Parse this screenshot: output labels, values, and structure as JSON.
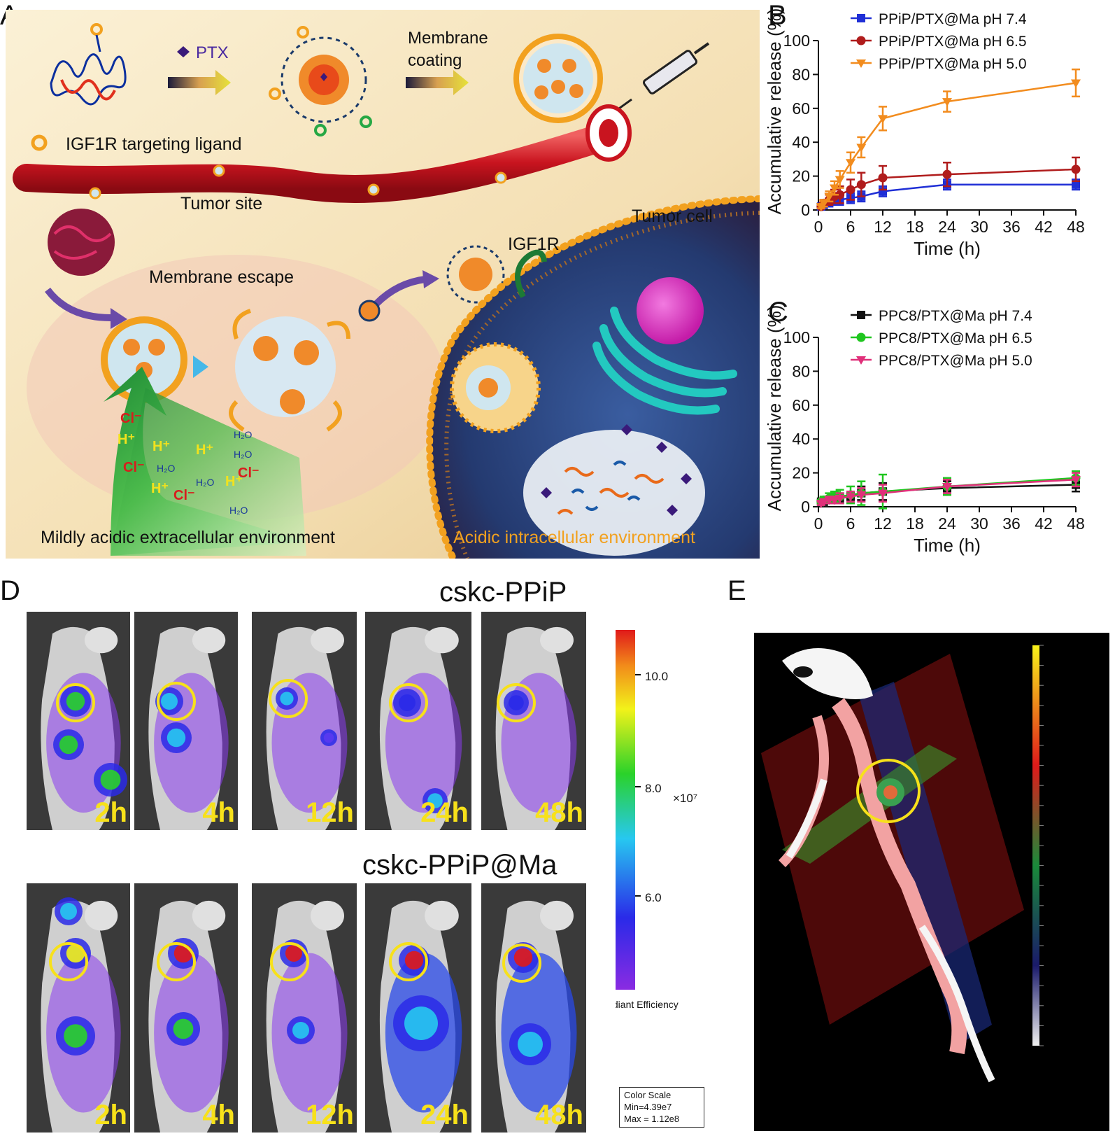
{
  "panels": {
    "a": "A",
    "b": "B",
    "c": "C",
    "d": "D",
    "e": "E"
  },
  "scheme": {
    "ptx_label": "PTX",
    "membrane_coating": "Membrane\ncoating",
    "membrane_coating_l1": "Membrane",
    "membrane_coating_l2": "coating",
    "igf1r_ligand": "IGF1R targeting ligand",
    "tumor_site": "Tumor site",
    "tumor_cell": "Tumor cell",
    "igf1r": "IGF1R",
    "membrane_escape": "Membrane escape",
    "extracellular": "Mildly acidic extracellular environment",
    "intracellular": "Acidic intracellular environment",
    "ions": [
      "Cl⁻",
      "H⁺",
      "H⁺",
      "H⁺",
      "H₂O",
      "Cl⁻",
      "H₂O",
      "H⁺",
      "H₂O",
      "Cl⁻",
      "H⁺",
      "Cl⁻",
      "H₂O",
      "H₂O"
    ],
    "colors": {
      "orange": "#f2a11f",
      "blood": "#c9141f",
      "cell": "#2a3a6a",
      "green": "#26a844"
    }
  },
  "chart_data": [
    {
      "type": "line",
      "panel": "B",
      "xlabel": "Time (h)",
      "ylabel": "Accumulative release (%)",
      "xlim": [
        0,
        48
      ],
      "ylim": [
        0,
        100
      ],
      "xticks": [
        0,
        6,
        12,
        18,
        24,
        30,
        36,
        42,
        48
      ],
      "yticks": [
        0,
        20,
        40,
        60,
        80,
        100
      ],
      "legend_position": "top-right",
      "series": [
        {
          "name": "PPiP/PTX@Ma pH 7.4",
          "color": "#1f2fd6",
          "marker": "square",
          "x": [
            0.5,
            1,
            2,
            3,
            4,
            6,
            8,
            12,
            24,
            48
          ],
          "y": [
            2,
            3,
            4,
            5,
            6,
            7,
            8,
            11,
            15,
            15
          ],
          "err": [
            1,
            1,
            2,
            2,
            3,
            3,
            3,
            3,
            3,
            3
          ]
        },
        {
          "name": "PPiP/PTX@Ma pH 6.5",
          "color": "#b01c1c",
          "marker": "circle",
          "x": [
            0.5,
            1,
            2,
            3,
            4,
            6,
            8,
            12,
            24,
            48
          ],
          "y": [
            2,
            4,
            6,
            8,
            9,
            12,
            15,
            19,
            21,
            24
          ],
          "err": [
            1,
            2,
            3,
            4,
            5,
            6,
            7,
            7,
            7,
            7
          ]
        },
        {
          "name": "PPiP/PTX@Ma pH 5.0",
          "color": "#f28c1e",
          "marker": "triangle-down",
          "x": [
            0.5,
            1,
            2,
            3,
            4,
            6,
            8,
            12,
            24,
            48
          ],
          "y": [
            2,
            4,
            8,
            13,
            18,
            28,
            37,
            54,
            64,
            75
          ],
          "err": [
            1,
            2,
            3,
            4,
            5,
            6,
            6,
            7,
            6,
            8
          ]
        }
      ]
    },
    {
      "type": "line",
      "panel": "C",
      "xlabel": "Time (h)",
      "ylabel": "Accumulative release (%)",
      "xlim": [
        0,
        48
      ],
      "ylim": [
        0,
        100
      ],
      "xticks": [
        0,
        6,
        12,
        18,
        24,
        30,
        36,
        42,
        48
      ],
      "yticks": [
        0,
        20,
        40,
        60,
        80,
        100
      ],
      "legend_position": "top-right",
      "series": [
        {
          "name": "PPC8/PTX@Ma pH 7.4",
          "color": "#111111",
          "marker": "square",
          "x": [
            0.5,
            1,
            2,
            3,
            4,
            6,
            8,
            12,
            24,
            48
          ],
          "y": [
            3,
            3,
            4,
            4,
            5,
            6,
            8,
            9,
            11,
            13
          ],
          "err": [
            1,
            2,
            2,
            2,
            3,
            3,
            4,
            5,
            4,
            4
          ]
        },
        {
          "name": "PPC8/PTX@Ma pH 6.5",
          "color": "#1fc61f",
          "marker": "circle",
          "x": [
            0.5,
            1,
            2,
            3,
            4,
            6,
            8,
            12,
            24,
            48
          ],
          "y": [
            3,
            4,
            5,
            6,
            6,
            7,
            8,
            9,
            12,
            17
          ],
          "err": [
            1,
            2,
            3,
            3,
            4,
            5,
            7,
            10,
            5,
            4
          ]
        },
        {
          "name": "PPC8/PTX@Ma pH 5.0",
          "color": "#e0307a",
          "marker": "triangle-down",
          "x": [
            0.5,
            1,
            2,
            3,
            4,
            6,
            8,
            12,
            24,
            48
          ],
          "y": [
            2,
            3,
            4,
            4,
            5,
            6,
            7,
            8,
            12,
            16
          ],
          "err": [
            1,
            1,
            2,
            2,
            3,
            3,
            4,
            5,
            4,
            4
          ]
        }
      ]
    }
  ],
  "imaging": {
    "row1_title": "cskc-PPiP",
    "row2_title": "cskc-PPiP@Ma",
    "timepoints": [
      "2h",
      "4h",
      "12h",
      "24h",
      "48h"
    ],
    "colorbar": {
      "ticks": [
        "10.0",
        "8.0",
        "6.0"
      ],
      "exponent": "×10⁷",
      "label": "Radiant Efficiency"
    },
    "color_scale": {
      "title": "Color Scale",
      "min": "Min=4.39e7",
      "max": "Max = 1.12e8"
    }
  }
}
